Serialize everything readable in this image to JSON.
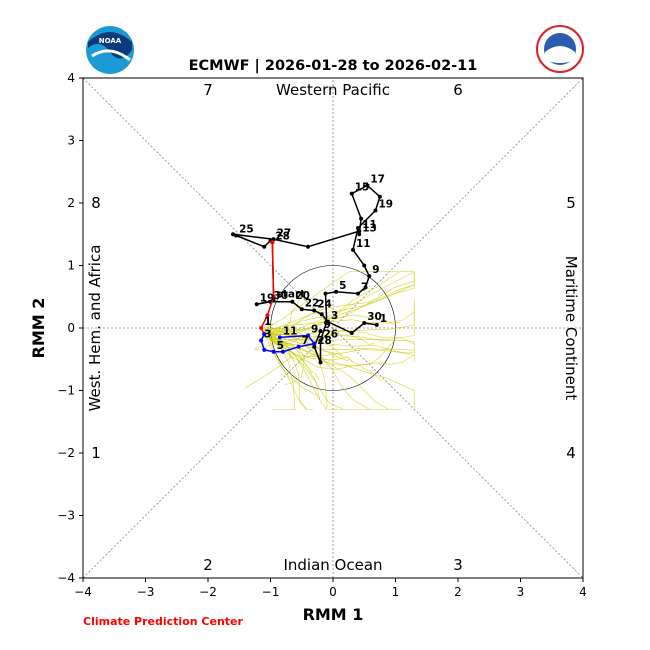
{
  "title": "ECMWF | 2026-01-28 to 2026-02-11",
  "credit": "Climate Prediction Center",
  "logos": {
    "noaa_text": "NOAA",
    "nws_text": "NATIONAL WEATHER SERVICE"
  },
  "chart_data": {
    "type": "line",
    "xlabel": "RMM 1",
    "ylabel": "RMM 2",
    "xlim": [
      -4,
      4
    ],
    "ylim": [
      -4,
      4
    ],
    "ticks": [
      "−4",
      "−3",
      "−2",
      "−1",
      "0",
      "1",
      "2",
      "3",
      "4"
    ],
    "regions": {
      "top": "Western Pacific",
      "bottom": "Indian Ocean",
      "left": "West. Hem. and Africa",
      "right": "Maritime Continent"
    },
    "phases": [
      "1",
      "2",
      "3",
      "4",
      "5",
      "6",
      "7",
      "8"
    ],
    "colors": {
      "observed": "#000000",
      "forecast_recent": "#ff0000",
      "forecast_mean": "#0000ff",
      "ensemble": "#cccc00"
    },
    "start_label": "start",
    "series": [
      {
        "points": [
          {
            "x": 0.7,
            "y": 0.05,
            "label": "1"
          },
          {
            "x": 0.5,
            "y": 0.08,
            "label": "30"
          },
          {
            "x": 0.3,
            "y": -0.08,
            "label": ""
          },
          {
            "x": -0.08,
            "y": 0.1,
            "label": "3"
          },
          {
            "x": -0.18,
            "y": 0.22,
            "label": ""
          },
          {
            "x": -0.3,
            "y": 0.28,
            "label": "24"
          },
          {
            "x": -0.5,
            "y": 0.3,
            "label": "22"
          },
          {
            "x": -0.65,
            "y": 0.42,
            "label": "20"
          },
          {
            "x": -1.0,
            "y": 0.42,
            "label": "30"
          },
          {
            "x": -1.22,
            "y": 0.38,
            "label": "19"
          },
          {
            "x": -0.95,
            "y": 0.44,
            "label": "start"
          },
          {
            "x": -0.97,
            "y": 1.37,
            "label": "28"
          },
          {
            "x": -1.0,
            "y": 1.4,
            "label": ""
          },
          {
            "x": -1.1,
            "y": 1.3,
            "label": ""
          },
          {
            "x": -1.55,
            "y": 1.48,
            "label": "25"
          },
          {
            "x": -1.6,
            "y": 1.5,
            "label": ""
          },
          {
            "x": -0.95,
            "y": 1.42,
            "label": "27"
          },
          {
            "x": -0.4,
            "y": 1.3,
            "label": ""
          },
          {
            "x": 0.42,
            "y": 1.55,
            "label": "11"
          },
          {
            "x": 0.42,
            "y": 1.5,
            "label": "13"
          },
          {
            "x": 0.45,
            "y": 1.75,
            "label": ""
          },
          {
            "x": 0.3,
            "y": 2.15,
            "label": "15"
          },
          {
            "x": 0.55,
            "y": 2.28,
            "label": "17"
          },
          {
            "x": 0.75,
            "y": 2.1,
            "label": ""
          },
          {
            "x": 0.68,
            "y": 1.88,
            "label": "19"
          },
          {
            "x": 0.4,
            "y": 1.6,
            "label": ""
          },
          {
            "x": 0.32,
            "y": 1.25,
            "label": "11"
          },
          {
            "x": 0.5,
            "y": 1.0,
            "label": ""
          },
          {
            "x": 0.58,
            "y": 0.83,
            "label": "9"
          },
          {
            "x": 0.52,
            "y": 0.65,
            "label": ""
          },
          {
            "x": 0.4,
            "y": 0.55,
            "label": "7"
          },
          {
            "x": 0.05,
            "y": 0.58,
            "label": "5"
          },
          {
            "x": -0.12,
            "y": 0.55,
            "label": ""
          },
          {
            "x": -0.1,
            "y": 0.1,
            "label": ""
          },
          {
            "x": -0.2,
            "y": -0.2,
            "label": "26"
          },
          {
            "x": -0.2,
            "y": -0.55,
            "label": ""
          },
          {
            "x": -0.3,
            "y": -0.3,
            "label": "28"
          },
          {
            "x": -0.2,
            "y": -0.05,
            "label": "9"
          }
        ]
      },
      {
        "points": [
          {
            "x": -0.97,
            "y": 1.37,
            "label": ""
          },
          {
            "x": -0.95,
            "y": 0.5,
            "label": ""
          },
          {
            "x": -1.05,
            "y": 0.2,
            "label": ""
          },
          {
            "x": -1.15,
            "y": 0.0,
            "label": "1"
          },
          {
            "x": -1.1,
            "y": -0.1,
            "label": ""
          }
        ]
      },
      {
        "points": [
          {
            "x": -1.1,
            "y": -0.1,
            "label": ""
          },
          {
            "x": -1.15,
            "y": -0.2,
            "label": "3"
          },
          {
            "x": -1.1,
            "y": -0.35,
            "label": ""
          },
          {
            "x": -0.95,
            "y": -0.38,
            "label": "5"
          },
          {
            "x": -0.8,
            "y": -0.38,
            "label": ""
          },
          {
            "x": -0.55,
            "y": -0.3,
            "label": "7"
          },
          {
            "x": -0.3,
            "y": -0.25,
            "label": ""
          },
          {
            "x": -0.4,
            "y": -0.12,
            "label": "9"
          },
          {
            "x": -0.85,
            "y": -0.15,
            "label": "11"
          }
        ]
      }
    ]
  }
}
